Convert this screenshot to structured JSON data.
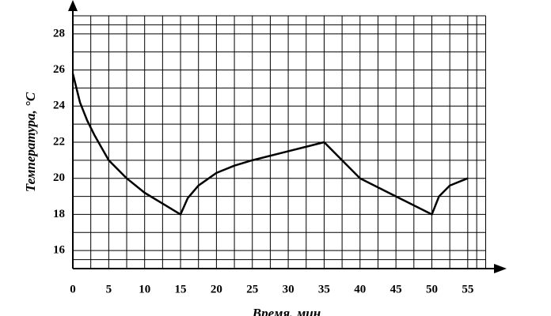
{
  "chart_data": {
    "type": "line",
    "x_label": "Время, мин",
    "y_label": "Температура, °C",
    "x": [
      0,
      1,
      2,
      3,
      5,
      7.5,
      10,
      12.5,
      15,
      16,
      17.5,
      20,
      22.5,
      25,
      30,
      35,
      37.5,
      40,
      45,
      50,
      51,
      52.5,
      55
    ],
    "values": [
      25.8,
      24.2,
      23.2,
      22.4,
      21,
      20,
      19.2,
      18.6,
      18,
      18.9,
      19.6,
      20.3,
      20.7,
      21,
      21.5,
      22,
      21,
      20,
      19,
      18,
      19,
      19.6,
      20
    ],
    "color": "#000000",
    "xlim": [
      0,
      57.5
    ],
    "ylim": [
      15,
      29
    ],
    "xticks": [
      0,
      5,
      10,
      15,
      20,
      25,
      30,
      35,
      40,
      45,
      50,
      55
    ],
    "yticks": [
      16,
      18,
      20,
      22,
      24,
      26,
      28
    ],
    "grid": true
  }
}
